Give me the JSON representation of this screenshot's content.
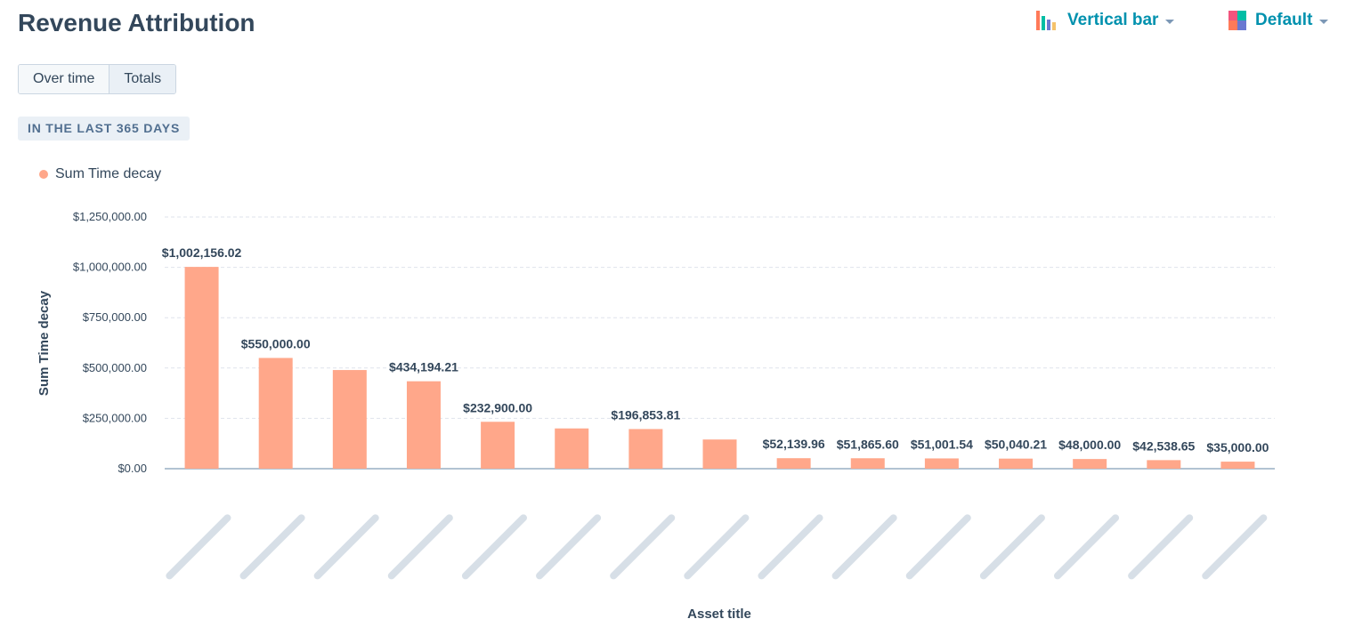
{
  "header": {
    "title": "Revenue Attribution",
    "chart_type_picker": {
      "label": "Vertical bar",
      "icon": "bar-chart-icon"
    },
    "theme_picker": {
      "label": "Default",
      "icon": "palette-icon"
    }
  },
  "view_toggle": {
    "options": [
      "Over time",
      "Totals"
    ],
    "selected": "Totals"
  },
  "date_range_badge": "IN THE LAST 365 DAYS",
  "colors": {
    "bar": "#ffa78a",
    "accent": "#0091ae",
    "text": "#33475b",
    "grid": "#dfe3eb"
  },
  "chart_data": {
    "type": "bar",
    "title": "",
    "xlabel": "Asset title",
    "ylabel": "Sum Time decay",
    "ylim": [
      0,
      1250000
    ],
    "yticks": [
      0,
      250000,
      500000,
      750000,
      1000000,
      1250000
    ],
    "ytick_labels": [
      "$0.00",
      "$250,000.00",
      "$500,000.00",
      "$750,000.00",
      "$1,000,000.00",
      "$1,250,000.00"
    ],
    "categories": [
      "",
      "",
      "",
      "",
      "",
      "",
      "",
      "",
      "",
      "",
      "",
      "",
      "",
      "",
      ""
    ],
    "category_label_blurred": true,
    "grid": true,
    "legend_position": "top-left",
    "series": [
      {
        "name": "Sum Time decay",
        "values": [
          1002156.02,
          550000,
          490000,
          434194.21,
          232900,
          200000,
          196853.81,
          145000,
          52139.96,
          51865.6,
          51001.54,
          50040.21,
          48000,
          42538.65,
          35000
        ],
        "data_labels": [
          "$1,002,156.02",
          "$550,000.00",
          "",
          "$434,194.21",
          "$232,900.00",
          "",
          "$196,853.81",
          "",
          "$52,139.96",
          "$51,865.60",
          "$51,001.54",
          "$50,040.21",
          "$48,000.00",
          "$42,538.65",
          "$35,000.00"
        ]
      }
    ]
  }
}
